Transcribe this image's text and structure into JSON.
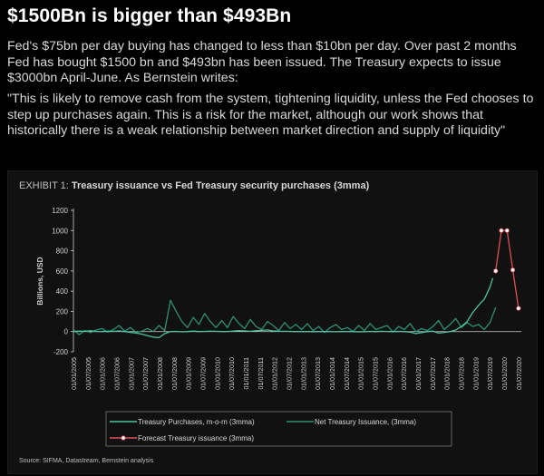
{
  "headline": "$1500Bn is bigger than $493Bn",
  "paragraph1": "Fed's $75bn per day buying has changed to less than $10bn per day. Over past 2 months Fed has bought $1500 bn and $493bn has been issued. The Treasury expects to issue $3000bn April-June. As Bernstein writes:",
  "paragraph2": "\"This is likely to remove cash from the system, tightening liquidity, unless the Fed chooses to step up purchases again. This is a risk for the market, although our work shows that historically there is a weak relationship between market direction and supply of liquidity\"",
  "colors": {
    "purchases": "#4fc3a1",
    "issuance": "#2f8f73",
    "forecast": "#d9505a",
    "axis": "#cfcfcf"
  },
  "chart_data": {
    "type": "line",
    "exhibit_label": "EXHIBIT 1:",
    "title": "Treasury issuance vs Fed Treasury security purchases (3mma)",
    "ylabel": "Billions, USD",
    "xlabel": "",
    "ylim": [
      -200,
      1200
    ],
    "yticks": [
      -200,
      0,
      200,
      400,
      600,
      800,
      1000,
      1200
    ],
    "x_tick_labels": [
      "01/01/2005",
      "01/07/2005",
      "01/01/2006",
      "01/07/2006",
      "01/01/2007",
      "01/07/2007",
      "01/01/2008",
      "01/07/2008",
      "01/01/2009",
      "01/07/2009",
      "01/01/2010",
      "01/07/2010",
      "01/01/2011",
      "01/07/2011",
      "01/01/2012",
      "01/07/2012",
      "01/01/2013",
      "01/07/2013",
      "01/01/2014",
      "01/07/2014",
      "01/01/2015",
      "01/07/2015",
      "01/01/2016",
      "01/07/2016",
      "01/01/2017",
      "01/07/2017",
      "01/01/2018",
      "01/07/2018",
      "01/01/2019",
      "01/07/2019",
      "01/01/2020",
      "01/07/2020"
    ],
    "legend_placement": "bottom",
    "series": [
      {
        "name": "Treasury Purchases, m-o-m (3mma)",
        "style": "purchases",
        "points": [
          [
            0,
            0
          ],
          [
            2,
            5
          ],
          [
            4,
            3
          ],
          [
            6,
            8
          ],
          [
            8,
            2
          ],
          [
            10,
            0
          ],
          [
            12,
            4
          ],
          [
            14,
            2
          ],
          [
            16,
            6
          ],
          [
            18,
            0
          ],
          [
            20,
            -8
          ],
          [
            22,
            -15
          ],
          [
            24,
            -25
          ],
          [
            26,
            -40
          ],
          [
            28,
            -55
          ],
          [
            30,
            -60
          ],
          [
            32,
            -20
          ],
          [
            34,
            0
          ],
          [
            36,
            2
          ],
          [
            38,
            -3
          ],
          [
            40,
            0
          ],
          [
            42,
            5
          ],
          [
            44,
            0
          ],
          [
            46,
            2
          ],
          [
            48,
            4
          ],
          [
            50,
            3
          ],
          [
            52,
            0
          ],
          [
            54,
            1
          ],
          [
            56,
            5
          ],
          [
            58,
            10
          ],
          [
            60,
            6
          ],
          [
            62,
            3
          ],
          [
            64,
            8
          ],
          [
            66,
            12
          ],
          [
            68,
            15
          ],
          [
            70,
            6
          ],
          [
            72,
            4
          ],
          [
            74,
            3
          ],
          [
            76,
            2
          ],
          [
            78,
            0
          ],
          [
            80,
            1
          ],
          [
            82,
            0
          ],
          [
            84,
            -1
          ],
          [
            86,
            0
          ],
          [
            88,
            1
          ],
          [
            90,
            0
          ],
          [
            92,
            -2
          ],
          [
            94,
            0
          ],
          [
            96,
            1
          ],
          [
            98,
            0
          ],
          [
            100,
            -3
          ],
          [
            102,
            -1
          ],
          [
            104,
            2
          ],
          [
            106,
            0
          ],
          [
            108,
            3
          ],
          [
            110,
            1
          ],
          [
            112,
            0
          ],
          [
            114,
            2
          ],
          [
            116,
            0
          ],
          [
            118,
            -5
          ],
          [
            120,
            -20
          ],
          [
            122,
            -10
          ],
          [
            124,
            0
          ],
          [
            126,
            5
          ],
          [
            128,
            -15
          ],
          [
            130,
            -8
          ],
          [
            132,
            0
          ],
          [
            134,
            15
          ],
          [
            136,
            50
          ],
          [
            138,
            100
          ],
          [
            140,
            190
          ],
          [
            142,
            260
          ],
          [
            144,
            320
          ],
          [
            146,
            440
          ],
          [
            147,
            530
          ]
        ]
      },
      {
        "name": "Net Treasury Issuance, (3mma)",
        "style": "issuance",
        "points": [
          [
            0,
            20
          ],
          [
            2,
            -30
          ],
          [
            4,
            10
          ],
          [
            6,
            -10
          ],
          [
            8,
            15
          ],
          [
            10,
            30
          ],
          [
            12,
            -5
          ],
          [
            14,
            20
          ],
          [
            16,
            60
          ],
          [
            18,
            5
          ],
          [
            20,
            40
          ],
          [
            22,
            -10
          ],
          [
            24,
            5
          ],
          [
            26,
            30
          ],
          [
            28,
            0
          ],
          [
            30,
            60
          ],
          [
            32,
            10
          ],
          [
            34,
            310
          ],
          [
            36,
            200
          ],
          [
            38,
            100
          ],
          [
            40,
            40
          ],
          [
            42,
            140
          ],
          [
            44,
            70
          ],
          [
            46,
            180
          ],
          [
            48,
            100
          ],
          [
            50,
            40
          ],
          [
            52,
            110
          ],
          [
            54,
            40
          ],
          [
            56,
            150
          ],
          [
            58,
            80
          ],
          [
            60,
            30
          ],
          [
            62,
            120
          ],
          [
            64,
            50
          ],
          [
            66,
            20
          ],
          [
            68,
            100
          ],
          [
            70,
            60
          ],
          [
            72,
            10
          ],
          [
            74,
            90
          ],
          [
            76,
            30
          ],
          [
            78,
            70
          ],
          [
            80,
            20
          ],
          [
            82,
            80
          ],
          [
            84,
            10
          ],
          [
            86,
            50
          ],
          [
            88,
            -10
          ],
          [
            90,
            40
          ],
          [
            92,
            70
          ],
          [
            94,
            20
          ],
          [
            96,
            40
          ],
          [
            98,
            0
          ],
          [
            100,
            60
          ],
          [
            102,
            10
          ],
          [
            104,
            80
          ],
          [
            106,
            20
          ],
          [
            108,
            40
          ],
          [
            110,
            60
          ],
          [
            112,
            -5
          ],
          [
            114,
            50
          ],
          [
            116,
            20
          ],
          [
            118,
            80
          ],
          [
            120,
            0
          ],
          [
            122,
            30
          ],
          [
            124,
            10
          ],
          [
            126,
            50
          ],
          [
            128,
            110
          ],
          [
            130,
            20
          ],
          [
            132,
            70
          ],
          [
            134,
            130
          ],
          [
            136,
            40
          ],
          [
            138,
            90
          ],
          [
            140,
            50
          ],
          [
            142,
            70
          ],
          [
            144,
            20
          ],
          [
            146,
            90
          ],
          [
            148,
            240
          ]
        ]
      },
      {
        "name": "Forecast Treasury issuance (3mma)",
        "style": "forecast",
        "points": [
          [
            148,
            600
          ],
          [
            150,
            1000
          ],
          [
            152,
            1000
          ],
          [
            154,
            610
          ],
          [
            156,
            230
          ]
        ]
      }
    ],
    "source": "Source: SIFMA, Datastream, Bernstein analysis"
  }
}
